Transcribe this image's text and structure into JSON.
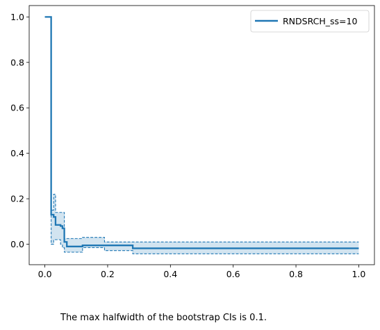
{
  "chart_data": {
    "type": "line",
    "title": "",
    "xlabel": "",
    "ylabel": "",
    "xlim": [
      -0.05,
      1.05
    ],
    "ylim": [
      -0.09,
      1.05
    ],
    "xticks": [
      0.0,
      0.2,
      0.4,
      0.6,
      0.8,
      1.0
    ],
    "xtick_labels": [
      "0.0",
      "0.2",
      "0.4",
      "0.6",
      "0.8",
      "1.0"
    ],
    "yticks": [
      0.0,
      0.2,
      0.4,
      0.6,
      0.8,
      1.0
    ],
    "ytick_labels": [
      "0.0",
      "0.2",
      "0.4",
      "0.6",
      "0.8",
      "1.0"
    ],
    "grid": false,
    "legend_position": "top-right",
    "series": [
      {
        "name": "RNDSRCH_ss=10",
        "color": "#1f77b4",
        "step": true,
        "x": [
          0.0,
          0.018,
          0.02,
          0.028,
          0.034,
          0.05,
          0.056,
          0.062,
          0.07,
          0.12,
          0.19,
          0.28,
          0.88,
          1.0
        ],
        "y": [
          1.0,
          1.0,
          0.13,
          0.12,
          0.085,
          0.08,
          0.07,
          0.01,
          -0.01,
          -0.005,
          -0.005,
          -0.018,
          -0.018,
          -0.018
        ],
        "ci_lower": [
          1.0,
          1.0,
          0.0,
          0.02,
          0.02,
          0.0,
          -0.015,
          -0.035,
          -0.035,
          -0.015,
          -0.028,
          -0.042,
          -0.042,
          -0.042
        ],
        "ci_upper": [
          1.0,
          1.0,
          0.15,
          0.22,
          0.14,
          0.14,
          0.14,
          0.025,
          0.025,
          0.03,
          0.01,
          0.01,
          0.01,
          0.01
        ]
      }
    ]
  },
  "caption": "The max halfwidth of the bootstrap CIs is 0.1."
}
